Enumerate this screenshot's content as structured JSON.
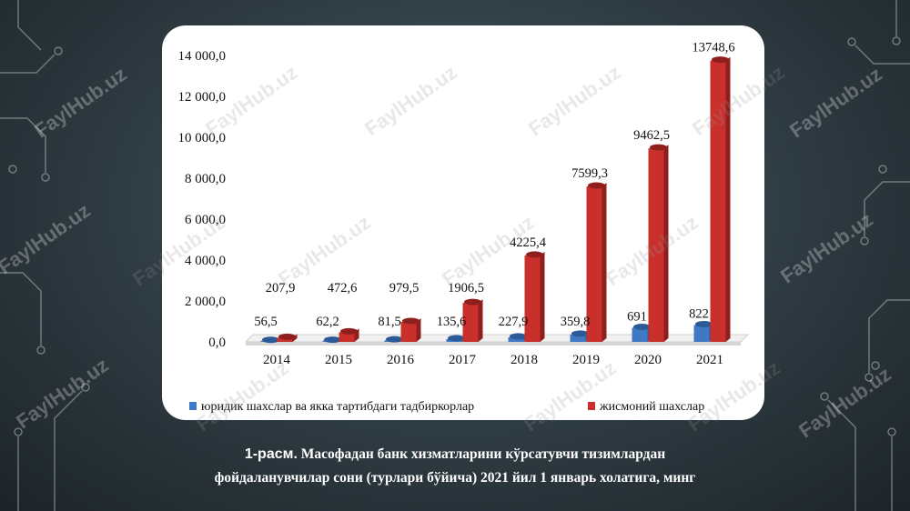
{
  "caption": {
    "figure_label": "1-расм.",
    "line1": "Масофадан банк хизматларини кўрсатувчи тизимлардан",
    "line2": "фойдаланувчилар сони (турлари бўйича) 2021 йил 1 январь холатига, минг"
  },
  "watermark_text": "FaylHub.uz",
  "chart_data": {
    "type": "bar",
    "categories": [
      "2014",
      "2015",
      "2016",
      "2017",
      "2018",
      "2019",
      "2020",
      "2021"
    ],
    "series": [
      {
        "name": "юридик шахслар ва якка тартибдаги тадбиркорлар",
        "color": "#3f79c4",
        "values": [
          56.5,
          62.2,
          81.5,
          135.6,
          227.9,
          359.8,
          691,
          822
        ],
        "labels": [
          "56,5",
          "62,2",
          "81,5",
          "135,6",
          "227,9",
          "359,8",
          "691",
          "822"
        ]
      },
      {
        "name": "жисмоний шахслар",
        "color": "#c9302c",
        "values": [
          207.9,
          472.6,
          979.5,
          1906.5,
          4225.4,
          7599.3,
          9462.5,
          13748.6
        ],
        "labels": [
          "207,9",
          "472,6",
          "979,5",
          "1906,5",
          "4225,4",
          "7599,3",
          "9462,5",
          "13748,6"
        ]
      }
    ],
    "ylim": [
      0,
      14000
    ],
    "yticks": [
      "0,0",
      "2 000,0",
      "4 000,0",
      "6 000,0",
      "8 000,0",
      "10 000,0",
      "12 000,0",
      "14 000,0"
    ],
    "grid": false,
    "legend": "bottom"
  }
}
